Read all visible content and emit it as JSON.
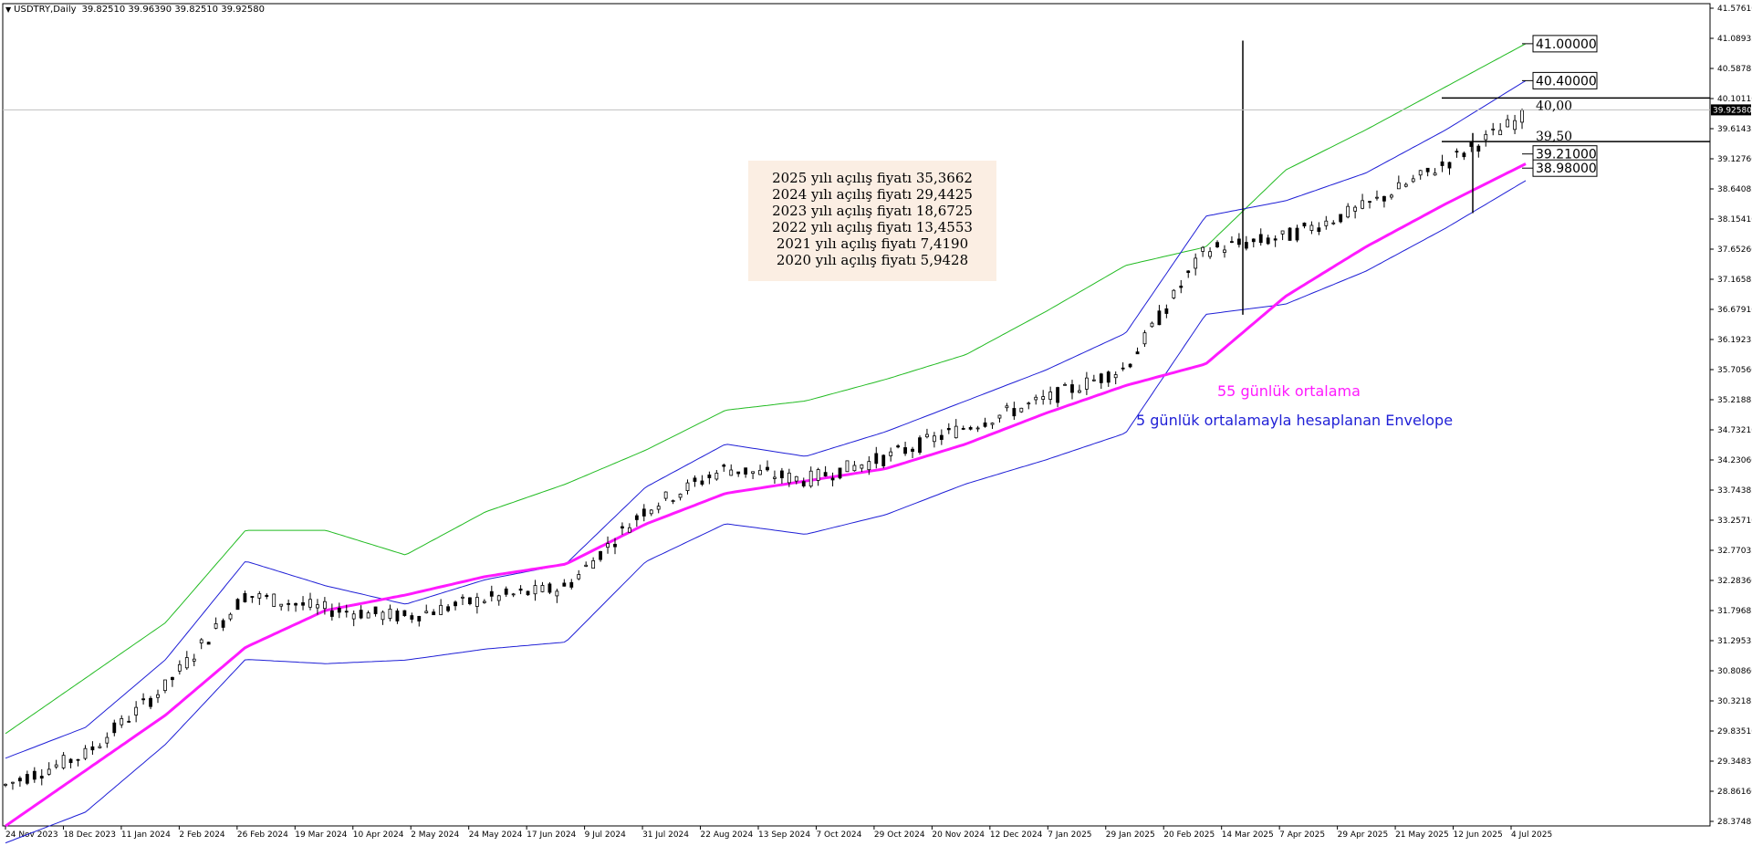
{
  "header": {
    "symbol": "USDTRY,Daily",
    "values": "39.82510 39.96390 39.82510 39.92580"
  },
  "info_box": {
    "lines": [
      "2025  yılı açılış fiyatı 35,3662",
      "2024 yılı açılış fiyatı 29,4425",
      "2023 yılı açılış fiyatı 18,6725",
      "2022 yılı açılış fiyatı 13,4553",
      "2021 yılı açılış fiyatı 7,4190",
      "2020 yılı açılış fiyatı 5,9428"
    ]
  },
  "annotations": {
    "ma55_label": "55 günlük ortalama",
    "envelope_label": "5 günlük ortalamayla hesaplanan Envelope"
  },
  "colors": {
    "ma55": "#ff1aff",
    "envelope_inner": "#1f1fd6",
    "envelope_outer": "#22bb22",
    "candles": "#000000",
    "ma55_label": "#ff1aff",
    "envelope_label": "#1f1fd6"
  },
  "chart_data": {
    "type": "candlestick",
    "symbol": "USDTRY",
    "timeframe": "Daily",
    "ylim": [
      28.37485,
      41.5761
    ],
    "y_tick_labels": [
      "41.57610",
      "41.08935",
      "40.58785",
      "40.10110",
      "39.61435",
      "39.12760",
      "38.64085",
      "38.15410",
      "37.65260",
      "37.16585",
      "36.67910",
      "36.19235",
      "35.70560",
      "35.21885",
      "34.73210",
      "34.23060",
      "33.74385",
      "33.25710",
      "32.77035",
      "32.28360",
      "31.79685",
      "31.29535",
      "30.80860",
      "30.32185",
      "29.83510",
      "29.34835",
      "28.86160",
      "28.37485"
    ],
    "x_tick_labels": [
      "24 Nov 2023",
      "18 Dec 2023",
      "11 Jan 2024",
      "2 Feb 2024",
      "26 Feb 2024",
      "19 Mar 2024",
      "10 Apr 2024",
      "2 May 2024",
      "24 May 2024",
      "17 Jun 2024",
      "9 Jul 2024",
      "31 Jul 2024",
      "22 Aug 2024",
      "13 Sep 2024",
      "7 Oct 2024",
      "29 Oct 2024",
      "20 Nov 2024",
      "12 Dec 2024",
      "7 Jan 2025",
      "29 Jan 2025",
      "20 Feb 2025",
      "14 Mar 2025",
      "7 Apr 2025",
      "29 Apr 2025",
      "21 May 2025",
      "12 Jun 2025",
      "4 Jul 2025"
    ],
    "current_price": "39.92580",
    "price_levels": [
      {
        "label": "41.00000",
        "value": 41.0,
        "boxed": true
      },
      {
        "label": "40.40000",
        "value": 40.4,
        "boxed": true
      },
      {
        "label": "40,00",
        "value": 40.0,
        "boxed": false
      },
      {
        "label": "39,50",
        "value": 39.5,
        "boxed": false
      },
      {
        "label": "39.21000",
        "value": 39.21,
        "boxed": true
      },
      {
        "label": "38.98000",
        "value": 38.98,
        "boxed": true
      }
    ],
    "series": [
      {
        "name": "55 günlük ortalama",
        "values": [
          28.3,
          29.2,
          30.1,
          31.2,
          31.8,
          32.05,
          32.35,
          32.55,
          33.2,
          33.7,
          33.9,
          34.1,
          34.5,
          35.0,
          35.45,
          35.8,
          36.9,
          37.7,
          38.4,
          39.05
        ]
      },
      {
        "name": "5 günlük ortalamayla hesaplanan Envelope",
        "values": [
          29.4,
          29.9,
          31.0,
          32.6,
          32.2,
          31.9,
          32.3,
          32.55,
          33.8,
          34.5,
          34.3,
          34.7,
          35.2,
          35.7,
          36.3,
          38.2,
          38.45,
          38.9,
          39.6,
          40.4
        ]
      },
      {
        "values": [
          29.8,
          30.7,
          31.6,
          33.1,
          33.1,
          32.7,
          33.4,
          33.85,
          34.4,
          35.05,
          35.2,
          35.55,
          35.95,
          36.65,
          37.4,
          37.7,
          38.95,
          39.6,
          40.3,
          41.0
        ]
      }
    ],
    "grid": false,
    "legend": "none"
  }
}
